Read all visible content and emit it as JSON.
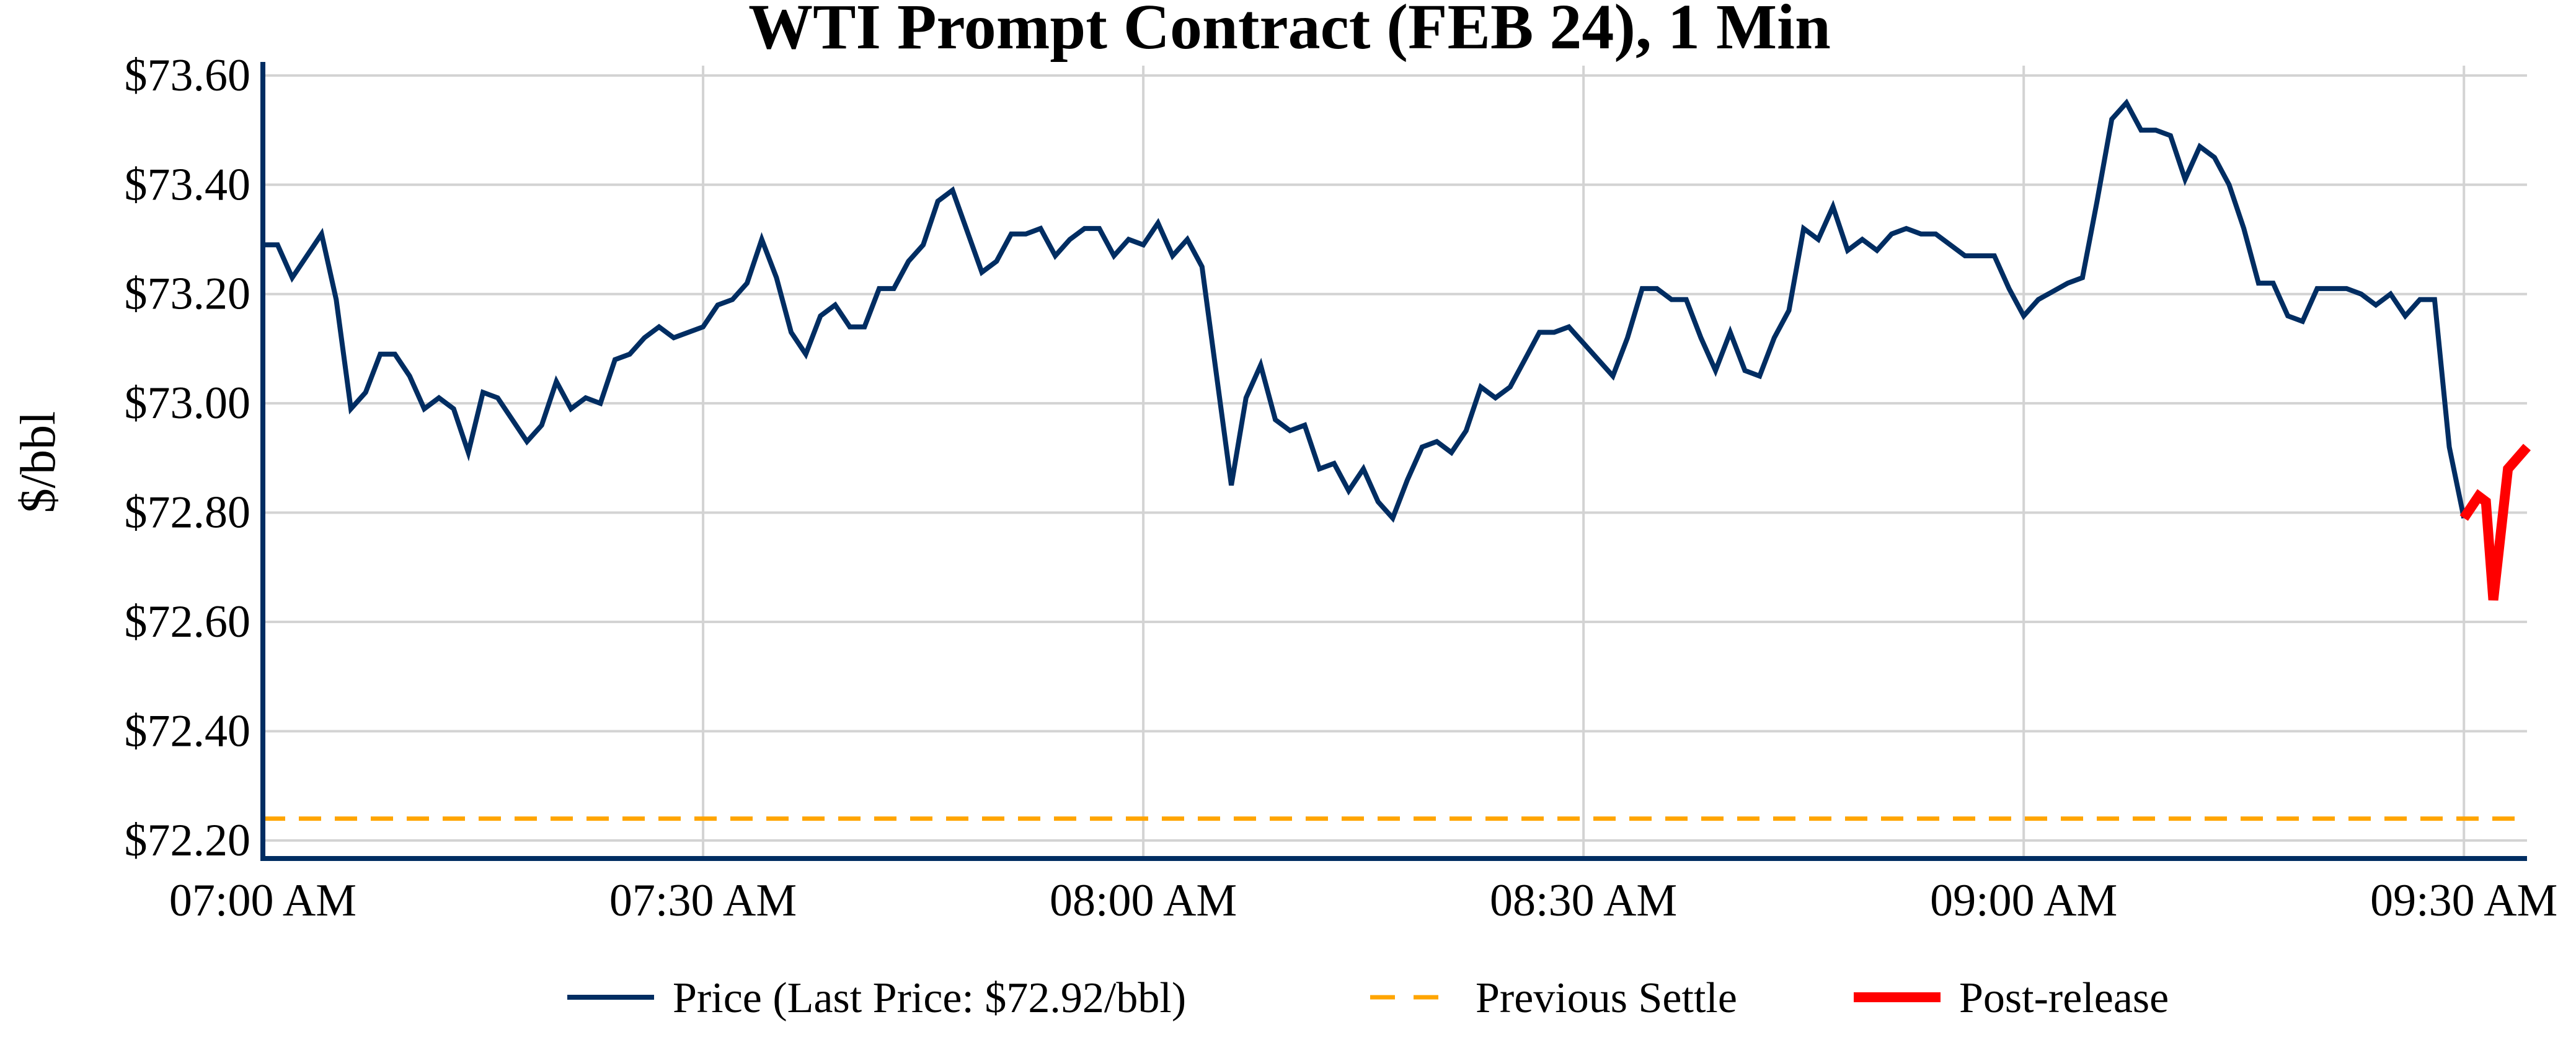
{
  "chart_data": {
    "type": "line",
    "title": "WTI Prompt Contract (FEB 24), 1 Min",
    "xlabel": "",
    "ylabel": "$/bbl",
    "x_unit": "minutes since 07:00 AM",
    "xlim": [
      0,
      154.3
    ],
    "ylim": [
      72.167,
      73.618
    ],
    "grid": true,
    "legend_position": "bottom",
    "x_ticks": [
      {
        "value": 0,
        "label": "07:00 AM"
      },
      {
        "value": 30,
        "label": "07:30 AM"
      },
      {
        "value": 60,
        "label": "08:00 AM"
      },
      {
        "value": 90,
        "label": "08:30 AM"
      },
      {
        "value": 120,
        "label": "09:00 AM"
      },
      {
        "value": 150,
        "label": "09:30 AM"
      }
    ],
    "y_ticks": [
      {
        "value": 73.6,
        "label": "$73.60"
      },
      {
        "value": 73.4,
        "label": "$73.40"
      },
      {
        "value": 73.2,
        "label": "$73.20"
      },
      {
        "value": 73.0,
        "label": "$73.00"
      },
      {
        "value": 72.8,
        "label": "$72.80"
      },
      {
        "value": 72.6,
        "label": "$72.60"
      },
      {
        "value": 72.4,
        "label": "$72.40"
      },
      {
        "value": 72.2,
        "label": "$72.20"
      }
    ],
    "series": [
      {
        "name": "Price (Last Price: $72.92/bbl)",
        "color": "#002d62",
        "style": "solid",
        "x": [
          0,
          1,
          2,
          4,
          5,
          6,
          7,
          8,
          9,
          10,
          11,
          12,
          13,
          14,
          15,
          16,
          18,
          19,
          20,
          21,
          22,
          23,
          24,
          25,
          26,
          27,
          28,
          30,
          31,
          32,
          33,
          34,
          35,
          36,
          37,
          38,
          39,
          40,
          41,
          42,
          43,
          44,
          45,
          46,
          47,
          49,
          50,
          51,
          52,
          53,
          54,
          55,
          56,
          57,
          58,
          59,
          60,
          61,
          62,
          63,
          64,
          65,
          66,
          67,
          68,
          69,
          70,
          71,
          72,
          73,
          74,
          75,
          76,
          77,
          78,
          79,
          80,
          81,
          82,
          83,
          84,
          85,
          86,
          87,
          88,
          89,
          90,
          92,
          93,
          94,
          95,
          96,
          97,
          98,
          99,
          100,
          101,
          102,
          103,
          104,
          105,
          106,
          107,
          108,
          109,
          110,
          111,
          112,
          113,
          114,
          116,
          118,
          119,
          120,
          121,
          123,
          124,
          125,
          126,
          127,
          128,
          129,
          130,
          131,
          132,
          133,
          134,
          135,
          136,
          137,
          138,
          139,
          140,
          142,
          143,
          144,
          145,
          146,
          147,
          148,
          149,
          150
        ],
        "y": [
          73.29,
          73.29,
          73.23,
          73.31,
          73.19,
          72.99,
          73.02,
          73.09,
          73.09,
          73.05,
          72.99,
          73.01,
          72.99,
          72.91,
          73.02,
          73.01,
          72.93,
          72.96,
          73.04,
          72.99,
          73.01,
          73.0,
          73.08,
          73.09,
          73.12,
          73.14,
          73.12,
          73.14,
          73.18,
          73.19,
          73.22,
          73.3,
          73.23,
          73.13,
          73.09,
          73.16,
          73.18,
          73.14,
          73.14,
          73.21,
          73.21,
          73.26,
          73.29,
          73.37,
          73.39,
          73.24,
          73.26,
          73.31,
          73.31,
          73.32,
          73.27,
          73.3,
          73.32,
          73.32,
          73.27,
          73.3,
          73.29,
          73.33,
          73.27,
          73.3,
          73.25,
          73.05,
          72.85,
          73.01,
          73.07,
          72.97,
          72.95,
          72.96,
          72.88,
          72.89,
          72.84,
          72.88,
          72.82,
          72.79,
          72.86,
          72.92,
          72.93,
          72.91,
          72.95,
          73.03,
          73.01,
          73.03,
          73.08,
          73.13,
          73.13,
          73.14,
          73.11,
          73.05,
          73.12,
          73.21,
          73.21,
          73.19,
          73.19,
          73.12,
          73.06,
          73.13,
          73.06,
          73.05,
          73.12,
          73.17,
          73.32,
          73.3,
          73.36,
          73.28,
          73.3,
          73.28,
          73.31,
          73.32,
          73.31,
          73.31,
          73.27,
          73.27,
          73.21,
          73.16,
          73.19,
          73.22,
          73.23,
          73.37,
          73.52,
          73.55,
          73.5,
          73.5,
          73.49,
          73.41,
          73.47,
          73.45,
          73.4,
          73.32,
          73.22,
          73.22,
          73.16,
          73.15,
          73.21,
          73.21,
          73.2,
          73.18,
          73.2,
          73.16,
          73.19,
          73.19,
          72.92,
          72.79
        ]
      },
      {
        "name": "Previous Settle",
        "color": "#ffa500",
        "style": "dashed",
        "x": [
          0,
          154.3
        ],
        "y": [
          72.24,
          72.24
        ]
      },
      {
        "name": "Post-release",
        "color": "#ff0000",
        "style": "thick",
        "x": [
          150,
          151,
          151.5,
          152,
          153,
          154.3
        ],
        "y": [
          72.79,
          72.83,
          72.82,
          72.64,
          72.88,
          72.92
        ]
      }
    ]
  }
}
